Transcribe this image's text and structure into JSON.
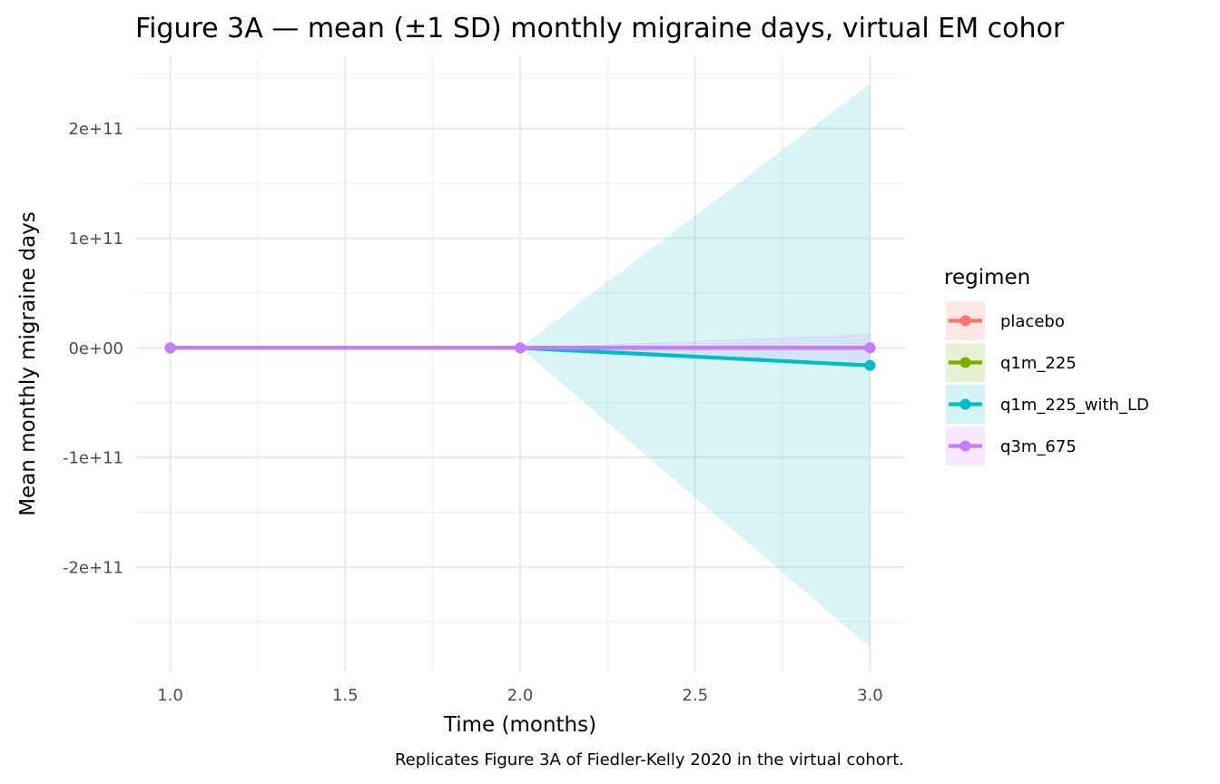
{
  "chart_data": {
    "type": "line",
    "title": "Figure 3A — mean (±1 SD) monthly migraine days, virtual EM cohor",
    "xlabel": "Time (months)",
    "ylabel": "Mean monthly migraine days",
    "caption": "Replicates Figure 3A of Fiedler-Kelly 2020 in the virtual cohort.",
    "xlim": [
      0.9,
      3.1
    ],
    "ylim": [
      -296000000000.0,
      266000000000.0
    ],
    "x_ticks": [
      1.0,
      1.5,
      2.0,
      2.5,
      3.0
    ],
    "x_tick_labels": [
      "1.0",
      "1.5",
      "2.0",
      "2.5",
      "3.0"
    ],
    "x_minor_ticks": [
      1.25,
      1.75,
      2.25,
      2.75
    ],
    "y_ticks": [
      -200000000000.0,
      -100000000000.0,
      0,
      100000000000.0,
      200000000000.0
    ],
    "y_tick_labels": [
      "-2e+11",
      "-1e+11",
      "0e+00",
      "1e+11",
      "2e+11"
    ],
    "y_minor_ticks": [
      -250000000000.0,
      -150000000000.0,
      -50000000000.0,
      50000000000.0,
      150000000000.0,
      250000000000.0
    ],
    "grid": true,
    "legend": {
      "title": "regimen",
      "position": "right"
    },
    "x": [
      1,
      2,
      3
    ],
    "series": [
      {
        "name": "placebo",
        "color": "#F8766D",
        "mean": [
          0,
          0,
          0
        ],
        "sd": [
          0,
          0,
          0
        ]
      },
      {
        "name": "q1m_225",
        "color": "#7CAE00",
        "mean": [
          0,
          0,
          0
        ],
        "sd": [
          0,
          0,
          0
        ]
      },
      {
        "name": "q1m_225_with_LD",
        "color": "#00BFC4",
        "mean": [
          0,
          0,
          -16000000000.0
        ],
        "sd": [
          0,
          0,
          257000000000.0
        ]
      },
      {
        "name": "q3m_675",
        "color": "#C77CFF",
        "mean": [
          0,
          0,
          0
        ],
        "sd": [
          0,
          0,
          13000000000.0
        ]
      }
    ]
  }
}
